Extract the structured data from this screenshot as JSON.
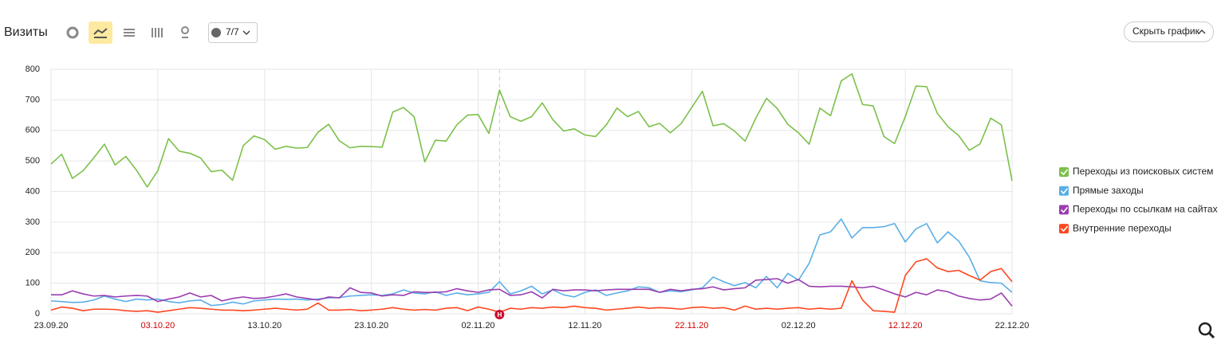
{
  "header": {
    "title": "Визиты",
    "segments": "7/7",
    "hide_button": "Скрыть график"
  },
  "chart_data": {
    "type": "line",
    "categories": [
      "23.09.20",
      null,
      null,
      null,
      null,
      null,
      null,
      null,
      null,
      null,
      "03.10.20",
      null,
      null,
      null,
      null,
      null,
      null,
      null,
      null,
      null,
      "13.10.20",
      null,
      null,
      null,
      null,
      null,
      null,
      null,
      null,
      null,
      "23.10.20",
      null,
      null,
      null,
      null,
      null,
      null,
      null,
      null,
      null,
      "02.11.20",
      null,
      null,
      null,
      null,
      null,
      null,
      null,
      null,
      null,
      "12.11.20",
      null,
      null,
      null,
      null,
      null,
      null,
      null,
      null,
      null,
      "22.11.20",
      null,
      null,
      null,
      null,
      null,
      null,
      null,
      null,
      null,
      "02.12.20",
      null,
      null,
      null,
      null,
      null,
      null,
      null,
      null,
      null,
      "12.12.20",
      null,
      null,
      null,
      null,
      null,
      null,
      null,
      null,
      null,
      "22.12.20"
    ],
    "category_colors": [
      null,
      null,
      null,
      null,
      null,
      null,
      null,
      null,
      null,
      null,
      "#cc0000",
      null,
      null,
      null,
      null,
      null,
      null,
      null,
      null,
      null,
      null,
      null,
      null,
      null,
      null,
      null,
      null,
      null,
      null,
      null,
      null,
      null,
      null,
      null,
      null,
      null,
      null,
      null,
      null,
      null,
      null,
      null,
      null,
      null,
      null,
      null,
      null,
      null,
      null,
      null,
      null,
      null,
      null,
      null,
      null,
      null,
      null,
      null,
      null,
      null,
      "#cc0000",
      null,
      null,
      null,
      null,
      null,
      null,
      null,
      null,
      null,
      null,
      null,
      null,
      null,
      null,
      null,
      null,
      null,
      null,
      null,
      "#cc0000",
      null,
      null,
      null,
      null,
      null,
      null,
      null,
      null,
      null,
      null
    ],
    "annotations": [
      {
        "index": 42,
        "label": "Н",
        "color": "#c8102e"
      }
    ],
    "ylim": [
      0,
      800
    ],
    "yticks": [
      0,
      100,
      200,
      300,
      400,
      500,
      600,
      700,
      800
    ],
    "grid": true,
    "legend": "right",
    "series": [
      {
        "name": "Переходы из поисковых систем",
        "color": "#7cc04b",
        "values": [
          490,
          522,
          443,
          468,
          510,
          555,
          487,
          515,
          470,
          415,
          468,
          573,
          532,
          525,
          510,
          465,
          470,
          437,
          550,
          582,
          570,
          538,
          548,
          542,
          544,
          594,
          620,
          566,
          543,
          548,
          547,
          545,
          660,
          675,
          645,
          497,
          568,
          565,
          618,
          650,
          652,
          590,
          732,
          645,
          630,
          645,
          690,
          635,
          598,
          605,
          585,
          580,
          618,
          673,
          645,
          662,
          612,
          623,
          592,
          622,
          675,
          728,
          615,
          622,
          598,
          565,
          640,
          705,
          672,
          620,
          592,
          555,
          673,
          648,
          762,
          785,
          685,
          680,
          580,
          557,
          645,
          745,
          743,
          656,
          612,
          583,
          535,
          556,
          640,
          618,
          435
        ]
      },
      {
        "name": "Прямые заходы",
        "color": "#5aaee6",
        "values": [
          42,
          40,
          37,
          38,
          45,
          58,
          48,
          40,
          48,
          45,
          48,
          40,
          36,
          42,
          45,
          27,
          30,
          38,
          32,
          42,
          45,
          48,
          47,
          48,
          45,
          48,
          52,
          53,
          58,
          60,
          62,
          60,
          65,
          78,
          68,
          65,
          72,
          60,
          68,
          62,
          65,
          70,
          105,
          65,
          75,
          90,
          65,
          78,
          62,
          55,
          70,
          78,
          60,
          68,
          75,
          88,
          85,
          70,
          75,
          72,
          78,
          85,
          120,
          105,
          92,
          102,
          85,
          122,
          85,
          132,
          110,
          165,
          258,
          268,
          310,
          248,
          282,
          282,
          285,
          295,
          235,
          278,
          295,
          232,
          268,
          238,
          185,
          108,
          102,
          100,
          70
        ]
      },
      {
        "name": "Переходы по ссылкам на сайтах",
        "color": "#9a3db0",
        "values": [
          62,
          62,
          75,
          65,
          58,
          60,
          55,
          58,
          60,
          58,
          40,
          48,
          55,
          68,
          55,
          60,
          42,
          50,
          55,
          50,
          52,
          58,
          65,
          55,
          50,
          45,
          55,
          52,
          85,
          70,
          68,
          58,
          62,
          60,
          72,
          70,
          70,
          72,
          82,
          75,
          70,
          78,
          80,
          60,
          62,
          72,
          52,
          80,
          75,
          78,
          78,
          75,
          78,
          80,
          80,
          80,
          80,
          70,
          80,
          75,
          80,
          82,
          88,
          78,
          82,
          85,
          110,
          112,
          115,
          100,
          112,
          90,
          88,
          90,
          90,
          88,
          85,
          90,
          78,
          65,
          55,
          70,
          62,
          78,
          72,
          58,
          50,
          45,
          48,
          68,
          25
        ]
      },
      {
        "name": "Внутренние переходы",
        "color": "#ff4720",
        "values": [
          12,
          22,
          18,
          10,
          15,
          15,
          14,
          10,
          8,
          10,
          5,
          10,
          15,
          20,
          18,
          15,
          12,
          12,
          10,
          12,
          15,
          18,
          15,
          12,
          15,
          35,
          12,
          12,
          14,
          10,
          12,
          15,
          20,
          15,
          12,
          14,
          12,
          18,
          20,
          10,
          22,
          15,
          5,
          18,
          15,
          20,
          18,
          22,
          20,
          25,
          20,
          18,
          12,
          15,
          18,
          22,
          18,
          20,
          18,
          15,
          20,
          22,
          18,
          20,
          12,
          25,
          15,
          18,
          15,
          18,
          20,
          15,
          18,
          15,
          18,
          108,
          45,
          10,
          8,
          5,
          125,
          170,
          180,
          150,
          138,
          142,
          125,
          110,
          138,
          148,
          105
        ]
      }
    ]
  }
}
